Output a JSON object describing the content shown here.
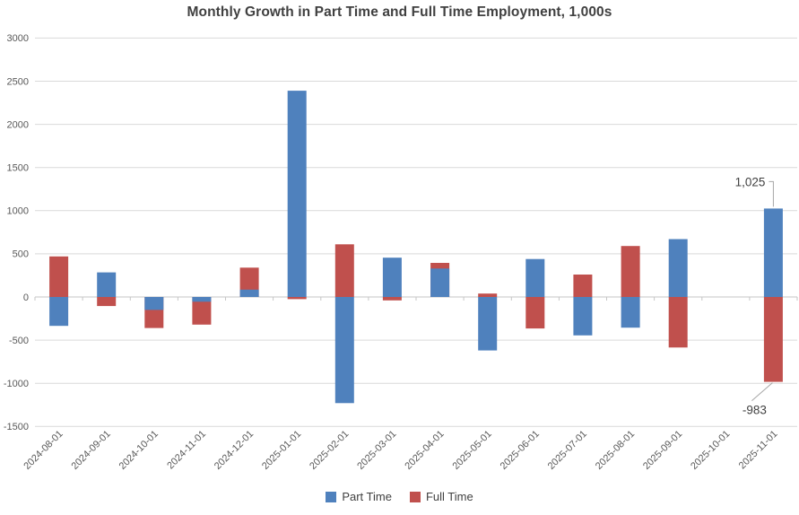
{
  "title": "Monthly Growth in Part Time and Full Time Employment, 1,000s",
  "chart_data": {
    "type": "bar",
    "overlapping_bars": true,
    "title": "Monthly Growth in Part Time and Full Time Employment, 1,000s",
    "xlabel": "",
    "ylabel": "",
    "categories": [
      "2024-08-01",
      "2024-09-01",
      "2024-10-01",
      "2024-11-01",
      "2024-12-01",
      "2025-01-01",
      "2025-02-01",
      "2025-03-01",
      "2025-04-01",
      "2025-05-01",
      "2025-06-01",
      "2025-07-01",
      "2025-08-01",
      "2025-09-01",
      "2025-10-01",
      "2025-11-01"
    ],
    "series": [
      {
        "name": "Part Time",
        "color": "#4f81bd",
        "values": [
          -335,
          285,
          -150,
          -55,
          85,
          2390,
          -1230,
          455,
          330,
          -620,
          440,
          -445,
          -355,
          670,
          0,
          1025
        ]
      },
      {
        "name": "Full Time",
        "color": "#c0504d",
        "values": [
          470,
          -105,
          -360,
          -320,
          340,
          -25,
          610,
          -40,
          395,
          40,
          -365,
          260,
          590,
          -585,
          0,
          -983
        ]
      }
    ],
    "ylim": [
      -1500,
      3000
    ],
    "ytick_step": 500,
    "yticks": [
      3000,
      2500,
      2000,
      1500,
      1000,
      500,
      0,
      -500,
      -1000,
      -1500
    ],
    "grid": true,
    "gridline_color": "#d9d9d9",
    "axis_text_color": "#595959",
    "legend_position": "bottom",
    "annotations": [
      {
        "text": "1,025",
        "series": "Part Time",
        "category": "2025-11-01",
        "category_index": 15,
        "value": 1025,
        "side": "above"
      },
      {
        "text": "-983",
        "series": "Full Time",
        "category": "2025-11-01",
        "category_index": 15,
        "value": -983,
        "side": "below"
      }
    ]
  }
}
